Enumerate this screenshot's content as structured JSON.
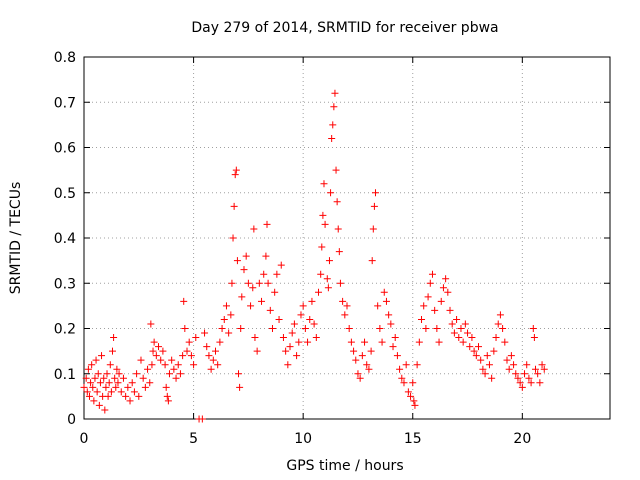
{
  "chart_data": {
    "type": "scatter",
    "title": "Day 279 of 2014, SRMTID for receiver pbwa",
    "xlabel": "GPS time / hours",
    "ylabel": "SRMTID / TECUs",
    "xlim": [
      0,
      24
    ],
    "ylim": [
      0,
      0.8
    ],
    "xticks": [
      0,
      5,
      10,
      15,
      20
    ],
    "yticks": [
      0,
      0.1,
      0.2,
      0.3,
      0.4,
      0.5,
      0.6,
      0.7,
      0.8
    ],
    "xtick_labels": [
      "0",
      "5",
      "10",
      "15",
      "20"
    ],
    "ytick_labels": [
      "0",
      "0.1",
      "0.2",
      "0.3",
      "0.4",
      "0.5",
      "0.6",
      "0.7",
      "0.8"
    ],
    "grid": true,
    "marker": "+",
    "color": "#ff0000",
    "series": [
      {
        "name": "SRMTID",
        "points": [
          [
            0.0,
            0.07
          ],
          [
            0.1,
            0.09
          ],
          [
            0.15,
            0.06
          ],
          [
            0.2,
            0.11
          ],
          [
            0.25,
            0.05
          ],
          [
            0.3,
            0.08
          ],
          [
            0.35,
            0.12
          ],
          [
            0.4,
            0.07
          ],
          [
            0.45,
            0.04
          ],
          [
            0.5,
            0.09
          ],
          [
            0.55,
            0.13
          ],
          [
            0.6,
            0.06
          ],
          [
            0.65,
            0.1
          ],
          [
            0.7,
            0.03
          ],
          [
            0.75,
            0.08
          ],
          [
            0.8,
            0.14
          ],
          [
            0.85,
            0.05
          ],
          [
            0.9,
            0.09
          ],
          [
            0.95,
            0.02
          ],
          [
            1.0,
            0.07
          ],
          [
            1.05,
            0.1
          ],
          [
            1.1,
            0.05
          ],
          [
            1.15,
            0.08
          ],
          [
            1.2,
            0.12
          ],
          [
            1.25,
            0.06
          ],
          [
            1.3,
            0.15
          ],
          [
            1.35,
            0.18
          ],
          [
            1.4,
            0.09
          ],
          [
            1.45,
            0.07
          ],
          [
            1.5,
            0.11
          ],
          [
            1.55,
            0.08
          ],
          [
            1.6,
            0.1
          ],
          [
            1.7,
            0.06
          ],
          [
            1.8,
            0.09
          ],
          [
            1.9,
            0.05
          ],
          [
            2.0,
            0.07
          ],
          [
            2.1,
            0.04
          ],
          [
            2.2,
            0.08
          ],
          [
            2.3,
            0.06
          ],
          [
            2.4,
            0.1
          ],
          [
            2.5,
            0.05
          ],
          [
            2.6,
            0.13
          ],
          [
            2.7,
            0.09
          ],
          [
            2.8,
            0.07
          ],
          [
            2.9,
            0.11
          ],
          [
            3.0,
            0.08
          ],
          [
            3.05,
            0.21
          ],
          [
            3.1,
            0.12
          ],
          [
            3.15,
            0.15
          ],
          [
            3.2,
            0.17
          ],
          [
            3.3,
            0.14
          ],
          [
            3.4,
            0.16
          ],
          [
            3.5,
            0.13
          ],
          [
            3.6,
            0.15
          ],
          [
            3.7,
            0.12
          ],
          [
            3.75,
            0.07
          ],
          [
            3.8,
            0.05
          ],
          [
            3.85,
            0.04
          ],
          [
            3.9,
            0.1
          ],
          [
            4.0,
            0.13
          ],
          [
            4.1,
            0.11
          ],
          [
            4.2,
            0.09
          ],
          [
            4.3,
            0.12
          ],
          [
            4.4,
            0.1
          ],
          [
            4.5,
            0.14
          ],
          [
            4.55,
            0.26
          ],
          [
            4.6,
            0.2
          ],
          [
            4.7,
            0.15
          ],
          [
            4.8,
            0.17
          ],
          [
            4.9,
            0.14
          ],
          [
            5.0,
            0.12
          ],
          [
            5.1,
            0.18
          ],
          [
            5.25,
            0.0
          ],
          [
            5.4,
            0.0
          ],
          [
            5.5,
            0.19
          ],
          [
            5.6,
            0.16
          ],
          [
            5.7,
            0.14
          ],
          [
            5.8,
            0.11
          ],
          [
            5.9,
            0.13
          ],
          [
            6.0,
            0.15
          ],
          [
            6.1,
            0.12
          ],
          [
            6.2,
            0.17
          ],
          [
            6.3,
            0.2
          ],
          [
            6.4,
            0.22
          ],
          [
            6.5,
            0.25
          ],
          [
            6.6,
            0.19
          ],
          [
            6.7,
            0.23
          ],
          [
            6.75,
            0.3
          ],
          [
            6.8,
            0.4
          ],
          [
            6.85,
            0.47
          ],
          [
            6.9,
            0.54
          ],
          [
            6.95,
            0.55
          ],
          [
            7.0,
            0.35
          ],
          [
            7.05,
            0.1
          ],
          [
            7.1,
            0.07
          ],
          [
            7.15,
            0.2
          ],
          [
            7.2,
            0.27
          ],
          [
            7.3,
            0.33
          ],
          [
            7.4,
            0.36
          ],
          [
            7.5,
            0.3
          ],
          [
            7.6,
            0.25
          ],
          [
            7.7,
            0.29
          ],
          [
            7.75,
            0.42
          ],
          [
            7.8,
            0.18
          ],
          [
            7.9,
            0.15
          ],
          [
            8.0,
            0.3
          ],
          [
            8.1,
            0.26
          ],
          [
            8.2,
            0.32
          ],
          [
            8.3,
            0.36
          ],
          [
            8.35,
            0.43
          ],
          [
            8.4,
            0.3
          ],
          [
            8.5,
            0.24
          ],
          [
            8.6,
            0.2
          ],
          [
            8.7,
            0.28
          ],
          [
            8.8,
            0.32
          ],
          [
            8.9,
            0.22
          ],
          [
            9.0,
            0.34
          ],
          [
            9.1,
            0.18
          ],
          [
            9.2,
            0.15
          ],
          [
            9.3,
            0.12
          ],
          [
            9.4,
            0.16
          ],
          [
            9.5,
            0.19
          ],
          [
            9.6,
            0.21
          ],
          [
            9.7,
            0.14
          ],
          [
            9.8,
            0.17
          ],
          [
            9.9,
            0.23
          ],
          [
            10.0,
            0.25
          ],
          [
            10.1,
            0.2
          ],
          [
            10.2,
            0.17
          ],
          [
            10.3,
            0.22
          ],
          [
            10.4,
            0.26
          ],
          [
            10.5,
            0.21
          ],
          [
            10.6,
            0.18
          ],
          [
            10.7,
            0.28
          ],
          [
            10.8,
            0.32
          ],
          [
            10.85,
            0.38
          ],
          [
            10.9,
            0.45
          ],
          [
            10.95,
            0.52
          ],
          [
            11.0,
            0.43
          ],
          [
            11.1,
            0.31
          ],
          [
            11.15,
            0.29
          ],
          [
            11.2,
            0.35
          ],
          [
            11.25,
            0.5
          ],
          [
            11.3,
            0.62
          ],
          [
            11.35,
            0.65
          ],
          [
            11.4,
            0.69
          ],
          [
            11.45,
            0.72
          ],
          [
            11.5,
            0.55
          ],
          [
            11.55,
            0.48
          ],
          [
            11.6,
            0.42
          ],
          [
            11.65,
            0.37
          ],
          [
            11.7,
            0.3
          ],
          [
            11.8,
            0.26
          ],
          [
            11.9,
            0.23
          ],
          [
            12.0,
            0.25
          ],
          [
            12.1,
            0.2
          ],
          [
            12.2,
            0.17
          ],
          [
            12.3,
            0.15
          ],
          [
            12.4,
            0.13
          ],
          [
            12.5,
            0.1
          ],
          [
            12.6,
            0.09
          ],
          [
            12.7,
            0.14
          ],
          [
            12.8,
            0.17
          ],
          [
            12.9,
            0.12
          ],
          [
            13.0,
            0.11
          ],
          [
            13.1,
            0.15
          ],
          [
            13.15,
            0.35
          ],
          [
            13.2,
            0.42
          ],
          [
            13.25,
            0.47
          ],
          [
            13.3,
            0.5
          ],
          [
            13.4,
            0.25
          ],
          [
            13.5,
            0.2
          ],
          [
            13.6,
            0.17
          ],
          [
            13.7,
            0.28
          ],
          [
            13.8,
            0.26
          ],
          [
            13.9,
            0.23
          ],
          [
            14.0,
            0.21
          ],
          [
            14.1,
            0.16
          ],
          [
            14.2,
            0.18
          ],
          [
            14.3,
            0.14
          ],
          [
            14.4,
            0.11
          ],
          [
            14.5,
            0.09
          ],
          [
            14.6,
            0.08
          ],
          [
            14.7,
            0.12
          ],
          [
            14.8,
            0.06
          ],
          [
            14.9,
            0.05
          ],
          [
            15.0,
            0.08
          ],
          [
            15.05,
            0.04
          ],
          [
            15.1,
            0.03
          ],
          [
            15.2,
            0.12
          ],
          [
            15.3,
            0.17
          ],
          [
            15.4,
            0.22
          ],
          [
            15.5,
            0.25
          ],
          [
            15.6,
            0.2
          ],
          [
            15.7,
            0.27
          ],
          [
            15.8,
            0.3
          ],
          [
            15.9,
            0.32
          ],
          [
            16.0,
            0.24
          ],
          [
            16.1,
            0.2
          ],
          [
            16.2,
            0.17
          ],
          [
            16.3,
            0.26
          ],
          [
            16.4,
            0.29
          ],
          [
            16.5,
            0.31
          ],
          [
            16.6,
            0.28
          ],
          [
            16.7,
            0.24
          ],
          [
            16.8,
            0.21
          ],
          [
            16.9,
            0.19
          ],
          [
            17.0,
            0.22
          ],
          [
            17.1,
            0.18
          ],
          [
            17.2,
            0.2
          ],
          [
            17.3,
            0.17
          ],
          [
            17.4,
            0.21
          ],
          [
            17.5,
            0.19
          ],
          [
            17.6,
            0.16
          ],
          [
            17.7,
            0.18
          ],
          [
            17.8,
            0.15
          ],
          [
            17.9,
            0.14
          ],
          [
            18.0,
            0.16
          ],
          [
            18.1,
            0.13
          ],
          [
            18.2,
            0.11
          ],
          [
            18.3,
            0.1
          ],
          [
            18.4,
            0.14
          ],
          [
            18.5,
            0.12
          ],
          [
            18.6,
            0.09
          ],
          [
            18.7,
            0.15
          ],
          [
            18.8,
            0.18
          ],
          [
            18.9,
            0.21
          ],
          [
            19.0,
            0.23
          ],
          [
            19.1,
            0.2
          ],
          [
            19.2,
            0.17
          ],
          [
            19.3,
            0.13
          ],
          [
            19.4,
            0.11
          ],
          [
            19.5,
            0.14
          ],
          [
            19.6,
            0.12
          ],
          [
            19.7,
            0.1
          ],
          [
            19.8,
            0.09
          ],
          [
            19.9,
            0.08
          ],
          [
            20.0,
            0.07
          ],
          [
            20.1,
            0.1
          ],
          [
            20.2,
            0.12
          ],
          [
            20.3,
            0.09
          ],
          [
            20.4,
            0.08
          ],
          [
            20.5,
            0.2
          ],
          [
            20.55,
            0.18
          ],
          [
            20.6,
            0.11
          ],
          [
            20.7,
            0.1
          ],
          [
            20.8,
            0.08
          ],
          [
            20.9,
            0.12
          ],
          [
            21.0,
            0.11
          ]
        ]
      }
    ]
  }
}
